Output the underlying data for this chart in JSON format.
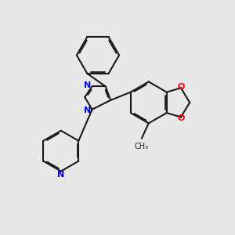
{
  "background_color": "#e8e8e8",
  "bond_color": "#1a1a1a",
  "nitrogen_color": "#0000ff",
  "oxygen_color": "#ff0000",
  "lw": 1.5,
  "dbo": 0.055,
  "figsize": [
    3.0,
    3.0
  ],
  "dpi": 100,
  "xlim": [
    0,
    10
  ],
  "ylim": [
    0,
    10
  ]
}
